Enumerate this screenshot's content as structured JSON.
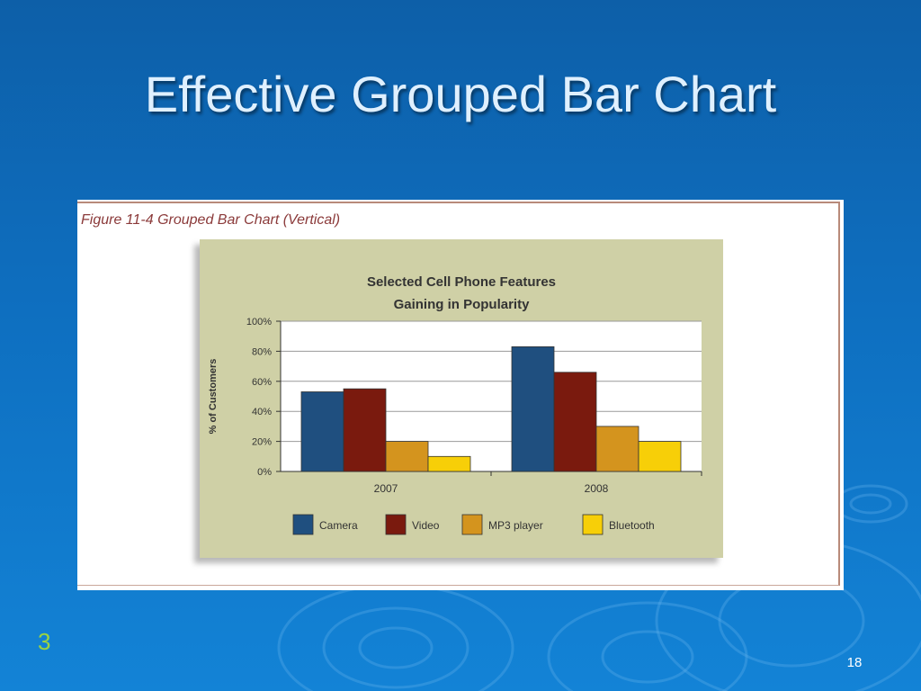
{
  "slide": {
    "title": "Effective Grouped Bar Chart",
    "counter": "3",
    "page_number": "18"
  },
  "figure": {
    "caption": "Figure 11-4  Grouped Bar Chart (Vertical)"
  },
  "chart_data": {
    "type": "bar",
    "title_lines": [
      "Selected Cell Phone Features",
      "Gaining in Popularity"
    ],
    "xlabel": "",
    "ylabel": "% of Customers",
    "ylim": [
      0,
      100
    ],
    "yticks": [
      "0%",
      "20%",
      "40%",
      "60%",
      "80%",
      "100%"
    ],
    "categories": [
      "2007",
      "2008"
    ],
    "series": [
      {
        "name": "Camera",
        "color": "#1f4f7f",
        "values": [
          53,
          83
        ]
      },
      {
        "name": "Video",
        "color": "#7a1a0e",
        "values": [
          55,
          66
        ]
      },
      {
        "name": "MP3 player",
        "color": "#d4941e",
        "values": [
          20,
          30
        ]
      },
      {
        "name": "Bluetooth",
        "color": "#f7cf08",
        "values": [
          10,
          20
        ]
      }
    ],
    "grid": true,
    "legend_position": "bottom"
  }
}
